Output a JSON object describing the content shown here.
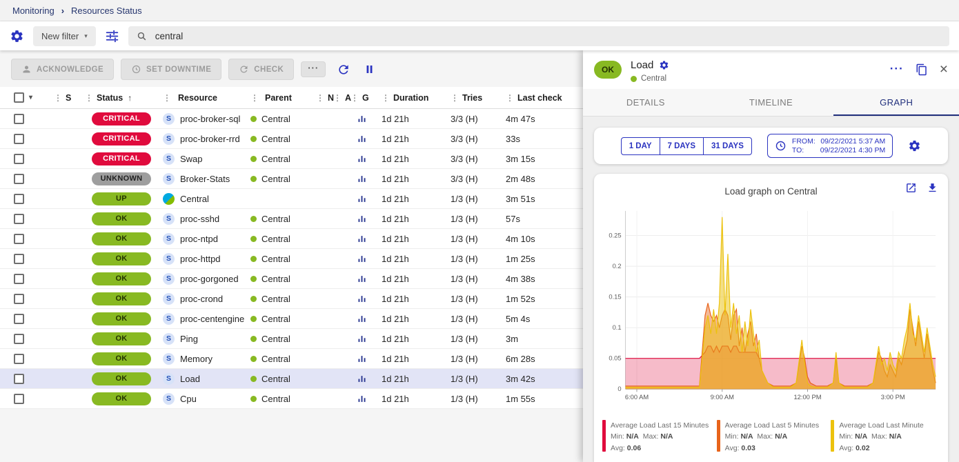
{
  "colors": {
    "accent_blue": "#2a33c0",
    "navy": "#202f7c",
    "critical": "#e00b3d",
    "unknown": "#9e9e9e",
    "ok_green": "#88b922",
    "selected_row": "#e2e4f6"
  },
  "breadcrumb": {
    "items": [
      "Monitoring",
      "Resources Status"
    ]
  },
  "filter_bar": {
    "new_filter_label": "New filter",
    "search_value": "central"
  },
  "toolbar": {
    "acknowledge_label": "ACKNOWLEDGE",
    "set_downtime_label": "SET DOWNTIME",
    "check_label": "CHECK",
    "more_label": "···"
  },
  "table": {
    "headers": [
      "S",
      "Status",
      "Resource",
      "Parent",
      "N",
      "A",
      "G",
      "Duration",
      "Tries",
      "Last check"
    ],
    "rows": [
      {
        "status": "CRITICAL",
        "status_type": "critical",
        "kind": "service",
        "resource": "proc-broker-sql",
        "parent": "Central",
        "has_graph": true,
        "duration": "1d 21h",
        "tries": "3/3 (H)",
        "last_check": "4m 47s",
        "selected": false
      },
      {
        "status": "CRITICAL",
        "status_type": "critical",
        "kind": "service",
        "resource": "proc-broker-rrd",
        "parent": "Central",
        "has_graph": true,
        "duration": "1d 21h",
        "tries": "3/3 (H)",
        "last_check": "33s",
        "selected": false
      },
      {
        "status": "CRITICAL",
        "status_type": "critical",
        "kind": "service",
        "resource": "Swap",
        "parent": "Central",
        "has_graph": true,
        "duration": "1d 21h",
        "tries": "3/3 (H)",
        "last_check": "3m 15s",
        "selected": false
      },
      {
        "status": "UNKNOWN",
        "status_type": "unknown",
        "kind": "service",
        "resource": "Broker-Stats",
        "parent": "Central",
        "has_graph": true,
        "duration": "1d 21h",
        "tries": "3/3 (H)",
        "last_check": "2m 48s",
        "selected": false
      },
      {
        "status": "UP",
        "status_type": "up",
        "kind": "host",
        "resource": "Central",
        "parent": "",
        "has_graph": true,
        "duration": "1d 21h",
        "tries": "1/3 (H)",
        "last_check": "3m 51s",
        "selected": false
      },
      {
        "status": "OK",
        "status_type": "ok",
        "kind": "service",
        "resource": "proc-sshd",
        "parent": "Central",
        "has_graph": true,
        "duration": "1d 21h",
        "tries": "1/3 (H)",
        "last_check": "57s",
        "selected": false
      },
      {
        "status": "OK",
        "status_type": "ok",
        "kind": "service",
        "resource": "proc-ntpd",
        "parent": "Central",
        "has_graph": true,
        "duration": "1d 21h",
        "tries": "1/3 (H)",
        "last_check": "4m 10s",
        "selected": false
      },
      {
        "status": "OK",
        "status_type": "ok",
        "kind": "service",
        "resource": "proc-httpd",
        "parent": "Central",
        "has_graph": true,
        "duration": "1d 21h",
        "tries": "1/3 (H)",
        "last_check": "1m 25s",
        "selected": false
      },
      {
        "status": "OK",
        "status_type": "ok",
        "kind": "service",
        "resource": "proc-gorgoned",
        "parent": "Central",
        "has_graph": true,
        "duration": "1d 21h",
        "tries": "1/3 (H)",
        "last_check": "4m 38s",
        "selected": false
      },
      {
        "status": "OK",
        "status_type": "ok",
        "kind": "service",
        "resource": "proc-crond",
        "parent": "Central",
        "has_graph": true,
        "duration": "1d 21h",
        "tries": "1/3 (H)",
        "last_check": "1m 52s",
        "selected": false
      },
      {
        "status": "OK",
        "status_type": "ok",
        "kind": "service",
        "resource": "proc-centengine",
        "parent": "Central",
        "has_graph": true,
        "duration": "1d 21h",
        "tries": "1/3 (H)",
        "last_check": "5m 4s",
        "selected": false
      },
      {
        "status": "OK",
        "status_type": "ok",
        "kind": "service",
        "resource": "Ping",
        "parent": "Central",
        "has_graph": true,
        "duration": "1d 21h",
        "tries": "1/3 (H)",
        "last_check": "3m",
        "selected": false
      },
      {
        "status": "OK",
        "status_type": "ok",
        "kind": "service",
        "resource": "Memory",
        "parent": "Central",
        "has_graph": true,
        "duration": "1d 21h",
        "tries": "1/3 (H)",
        "last_check": "6m 28s",
        "selected": false
      },
      {
        "status": "OK",
        "status_type": "ok",
        "kind": "service",
        "resource": "Load",
        "parent": "Central",
        "has_graph": true,
        "duration": "1d 21h",
        "tries": "1/3 (H)",
        "last_check": "3m 42s",
        "selected": true
      },
      {
        "status": "OK",
        "status_type": "ok",
        "kind": "service",
        "resource": "Cpu",
        "parent": "Central",
        "has_graph": true,
        "duration": "1d 21h",
        "tries": "1/3 (H)",
        "last_check": "1m 55s",
        "selected": false
      }
    ]
  },
  "panel": {
    "status": "OK",
    "title": "Load",
    "subtitle": "Central",
    "more_label": "···",
    "tabs": [
      {
        "label": "DETAILS",
        "active": false
      },
      {
        "label": "TIMELINE",
        "active": false
      },
      {
        "label": "GRAPH",
        "active": true
      }
    ],
    "time_buttons": [
      "1 DAY",
      "7 DAYS",
      "31 DAYS"
    ],
    "from_label": "FROM:",
    "from_value": "09/22/2021 5:37 AM",
    "to_label": "TO:",
    "to_value": "09/22/2021 4:30 PM",
    "graph_title": "Load graph on Central"
  },
  "chart_data": {
    "type": "area",
    "title": "Load graph on Central",
    "x_ticks": [
      "6:00 AM",
      "9:00 AM",
      "12:00 PM",
      "3:00 PM"
    ],
    "x_tick_values": [
      6,
      9,
      12,
      15
    ],
    "x_range": [
      5.6,
      16.5
    ],
    "y_ticks": [
      0,
      0.05,
      0.1,
      0.15,
      0.2,
      0.25
    ],
    "ylim": [
      0,
      0.29
    ],
    "legend_labels": {
      "min": "Min:",
      "max": "Max:",
      "avg": "Avg:"
    },
    "x": [
      5.6,
      5.8,
      6.0,
      6.2,
      6.4,
      6.6,
      6.8,
      7.0,
      7.2,
      7.4,
      7.6,
      7.8,
      8.0,
      8.2,
      8.4,
      8.5,
      8.6,
      8.7,
      8.8,
      8.9,
      9.0,
      9.1,
      9.2,
      9.3,
      9.4,
      9.5,
      9.6,
      9.7,
      9.8,
      9.9,
      10.0,
      10.1,
      10.2,
      10.3,
      10.4,
      10.6,
      10.8,
      11.0,
      11.2,
      11.4,
      11.6,
      11.8,
      11.9,
      12.0,
      12.1,
      12.3,
      12.5,
      12.7,
      12.9,
      13.0,
      13.1,
      13.3,
      13.5,
      13.7,
      13.9,
      14.1,
      14.3,
      14.5,
      14.6,
      14.7,
      14.8,
      14.9,
      15.0,
      15.1,
      15.2,
      15.3,
      15.4,
      15.5,
      15.6,
      15.7,
      15.8,
      15.9,
      16.0,
      16.1,
      16.2,
      16.3,
      16.4,
      16.5
    ],
    "series": [
      {
        "name": "Average Load Last 15 Minutes",
        "color": "#e00b3d",
        "fill_opacity": 0.28,
        "min": "N/A",
        "max": "N/A",
        "avg": "0.06",
        "values": [
          0.05,
          0.05,
          0.05,
          0.05,
          0.05,
          0.05,
          0.05,
          0.05,
          0.05,
          0.05,
          0.05,
          0.05,
          0.05,
          0.05,
          0.06,
          0.07,
          0.07,
          0.06,
          0.07,
          0.06,
          0.07,
          0.07,
          0.07,
          0.06,
          0.07,
          0.07,
          0.06,
          0.06,
          0.06,
          0.06,
          0.06,
          0.06,
          0.06,
          0.05,
          0.05,
          0.05,
          0.05,
          0.05,
          0.05,
          0.05,
          0.05,
          0.05,
          0.05,
          0.05,
          0.05,
          0.05,
          0.05,
          0.05,
          0.05,
          0.05,
          0.05,
          0.05,
          0.05,
          0.05,
          0.05,
          0.05,
          0.05,
          0.05,
          0.05,
          0.05,
          0.05,
          0.05,
          0.05,
          0.05,
          0.05,
          0.05,
          0.05,
          0.05,
          0.05,
          0.05,
          0.05,
          0.05,
          0.05,
          0.05,
          0.05,
          0.05,
          0.05,
          0.05
        ]
      },
      {
        "name": "Average Load Last 5 Minutes",
        "color": "#e8641b",
        "fill_opacity": 0.45,
        "min": "N/A",
        "max": "N/A",
        "avg": "0.03",
        "values": [
          0.005,
          0.005,
          0.005,
          0.005,
          0.005,
          0.005,
          0.005,
          0.005,
          0.005,
          0.005,
          0.005,
          0.005,
          0.005,
          0.005,
          0.12,
          0.14,
          0.12,
          0.11,
          0.12,
          0.1,
          0.12,
          0.13,
          0.12,
          0.08,
          0.12,
          0.13,
          0.07,
          0.1,
          0.06,
          0.09,
          0.11,
          0.07,
          0.09,
          0.05,
          0.03,
          0.01,
          0.005,
          0.005,
          0.005,
          0.005,
          0.01,
          0.07,
          0.05,
          0.02,
          0.01,
          0.005,
          0.005,
          0.005,
          0.01,
          0.05,
          0.01,
          0.005,
          0.005,
          0.005,
          0.005,
          0.005,
          0.01,
          0.06,
          0.05,
          0.03,
          0.02,
          0.04,
          0.03,
          0.02,
          0.05,
          0.04,
          0.06,
          0.08,
          0.13,
          0.1,
          0.07,
          0.11,
          0.08,
          0.05,
          0.09,
          0.06,
          0.03,
          0.01
        ]
      },
      {
        "name": "Average Load Last Minute",
        "color": "#ecc20d",
        "fill_opacity": 0.5,
        "min": "N/A",
        "max": "N/A",
        "avg": "0.02",
        "values": [
          0.003,
          0.003,
          0.003,
          0.003,
          0.003,
          0.003,
          0.003,
          0.003,
          0.003,
          0.003,
          0.003,
          0.003,
          0.003,
          0.003,
          0.1,
          0.12,
          0.09,
          0.13,
          0.09,
          0.14,
          0.28,
          0.12,
          0.22,
          0.1,
          0.14,
          0.09,
          0.12,
          0.06,
          0.11,
          0.07,
          0.13,
          0.09,
          0.06,
          0.08,
          0.03,
          0.01,
          0.003,
          0.003,
          0.003,
          0.003,
          0.01,
          0.08,
          0.04,
          0.01,
          0.005,
          0.003,
          0.003,
          0.003,
          0.01,
          0.06,
          0.01,
          0.003,
          0.003,
          0.003,
          0.003,
          0.003,
          0.01,
          0.07,
          0.04,
          0.05,
          0.03,
          0.06,
          0.04,
          0.03,
          0.06,
          0.05,
          0.08,
          0.1,
          0.14,
          0.09,
          0.08,
          0.12,
          0.09,
          0.06,
          0.1,
          0.07,
          0.04,
          0.02
        ]
      }
    ]
  }
}
